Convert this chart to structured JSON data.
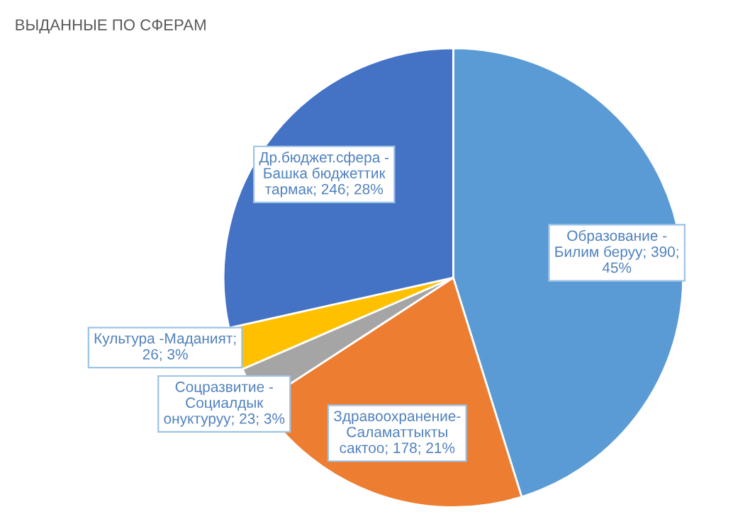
{
  "chart_data": {
    "type": "pie",
    "title": "ВЫДАННЫЕ ПО СФЕРАМ",
    "categories": [
      "Образование -\nБилим беруу",
      "Здравоохранение-\nСаламаттыкты\nсактоо",
      "Соцразвитие -\nСоциалдык\nонуктуруу",
      "Культура -Маданият",
      "Др.бюджет.сфера -\nБашка бюджеттик\nтармак"
    ],
    "values": [
      390,
      178,
      23,
      26,
      246
    ],
    "colors": [
      "#5b9bd5",
      "#ed7d31",
      "#a5a5a5",
      "#ffc000",
      "#4472c4"
    ],
    "value_labels": [
      "; 390;\n45%",
      "; 178; 21%",
      "; 23; 3%",
      ";\n26; 3%",
      "; 246; 28%"
    ],
    "legend": false
  }
}
